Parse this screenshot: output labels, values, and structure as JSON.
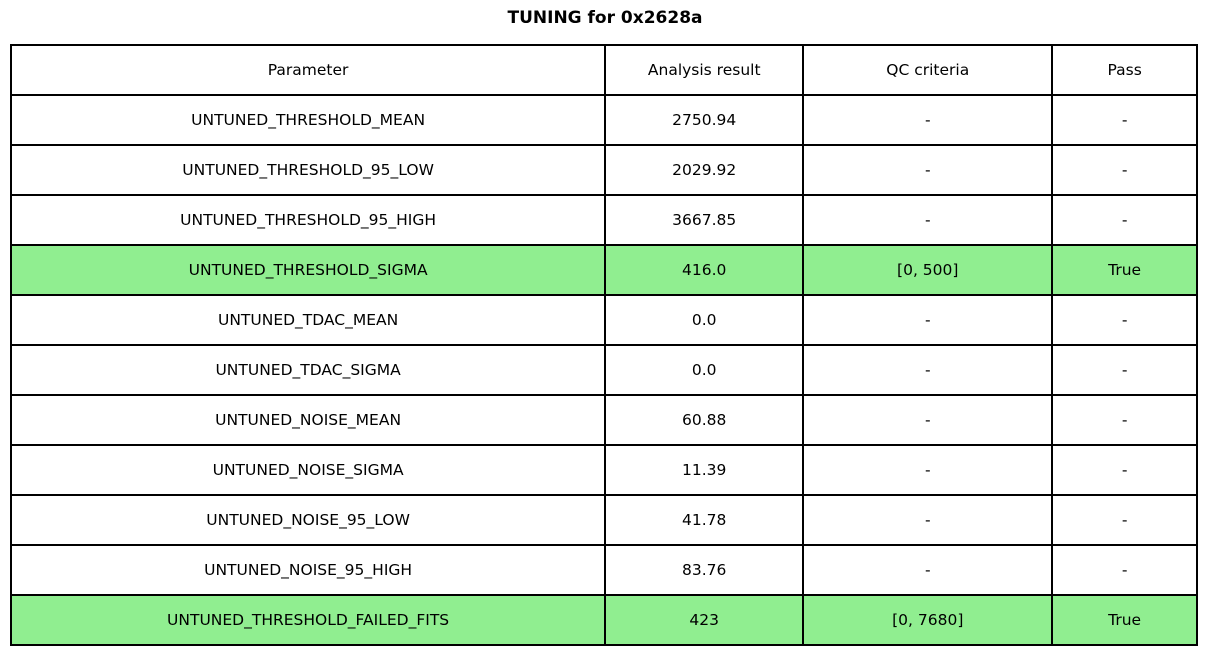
{
  "chart_data": {
    "type": "table",
    "title": "TUNING for 0x2628a",
    "columns": [
      "Parameter",
      "Analysis result",
      "QC criteria",
      "Pass"
    ],
    "rows": [
      {
        "parameter": "UNTUNED_THRESHOLD_MEAN",
        "analysis_result": "2750.94",
        "qc_criteria": "-",
        "pass": "-",
        "highlight": false
      },
      {
        "parameter": "UNTUNED_THRESHOLD_95_LOW",
        "analysis_result": "2029.92",
        "qc_criteria": "-",
        "pass": "-",
        "highlight": false
      },
      {
        "parameter": "UNTUNED_THRESHOLD_95_HIGH",
        "analysis_result": "3667.85",
        "qc_criteria": "-",
        "pass": "-",
        "highlight": false
      },
      {
        "parameter": "UNTUNED_THRESHOLD_SIGMA",
        "analysis_result": "416.0",
        "qc_criteria": "[0, 500]",
        "pass": "True",
        "highlight": true
      },
      {
        "parameter": "UNTUNED_TDAC_MEAN",
        "analysis_result": "0.0",
        "qc_criteria": "-",
        "pass": "-",
        "highlight": false
      },
      {
        "parameter": "UNTUNED_TDAC_SIGMA",
        "analysis_result": "0.0",
        "qc_criteria": "-",
        "pass": "-",
        "highlight": false
      },
      {
        "parameter": "UNTUNED_NOISE_MEAN",
        "analysis_result": "60.88",
        "qc_criteria": "-",
        "pass": "-",
        "highlight": false
      },
      {
        "parameter": "UNTUNED_NOISE_SIGMA",
        "analysis_result": "11.39",
        "qc_criteria": "-",
        "pass": "-",
        "highlight": false
      },
      {
        "parameter": "UNTUNED_NOISE_95_LOW",
        "analysis_result": "41.78",
        "qc_criteria": "-",
        "pass": "-",
        "highlight": false
      },
      {
        "parameter": "UNTUNED_NOISE_95_HIGH",
        "analysis_result": "83.76",
        "qc_criteria": "-",
        "pass": "-",
        "highlight": false
      },
      {
        "parameter": "UNTUNED_THRESHOLD_FAILED_FITS",
        "analysis_result": "423",
        "qc_criteria": "[0, 7680]",
        "pass": "True",
        "highlight": true
      }
    ],
    "colors": {
      "highlight_row_background": "#90EE90",
      "border": "#000000",
      "text": "#000000",
      "background": "#ffffff"
    },
    "layout": {
      "grid": true,
      "legend_position": "none"
    }
  }
}
